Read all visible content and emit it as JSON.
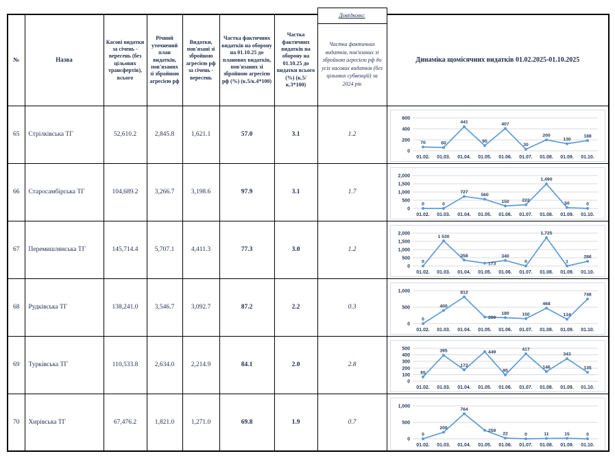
{
  "table": {
    "headers": {
      "num": "№",
      "name": "Назва",
      "cash": "Касові видатки за січень - вересень (без цільових трансфертів), всього",
      "annual_plan": "Річний уточнений план видатків, пов'язаних зі збройною агресією рф",
      "war_expenses": "Видатки, пов'язані зі збройною агресією рф за січень - вересень",
      "share_of_plan": "Частка фактичних видатків на оборону на 01.10.25 до планових видатків, пов'язаних зі збройною агресією рф (%) (к.5/к.4*100)",
      "share_of_total": "Частка фактичних видатків на оборону на 01.10.25 до видатки всього (%) (к.5/к.3*100)",
      "reference_label": "Довідково:",
      "reference_note": "Частка фактичних видатків, пов'язаних зі збройною агресією рф до усіх касових видатків (без цільових субвенцій) за 2024 рік",
      "dynamics": "Динаміка щомісячних видатків 01.02.2025-01.10.2025"
    },
    "rows": [
      {
        "num": "65",
        "name": "Стрілківська ТГ",
        "cash": "52,610.2",
        "annual_plan": "2,845.8",
        "war_expenses": "1,621.1",
        "share_of_plan": "57.0",
        "share_of_total": "3.1",
        "reference_2024": "1.2"
      },
      {
        "num": "66",
        "name": "Старосамбірська ТГ",
        "cash": "104,689.2",
        "annual_plan": "3,266.7",
        "war_expenses": "3,198.6",
        "share_of_plan": "97.9",
        "share_of_total": "3.1",
        "reference_2024": "1.7"
      },
      {
        "num": "67",
        "name": "Перемишлянська ТГ",
        "cash": "145,714.4",
        "annual_plan": "5,707.1",
        "war_expenses": "4,411.3",
        "share_of_plan": "77.3",
        "share_of_total": "3.0",
        "reference_2024": "1.2"
      },
      {
        "num": "68",
        "name": "Рудківська ТГ",
        "cash": "138,241.0",
        "annual_plan": "3,546.7",
        "war_expenses": "3,092.7",
        "share_of_plan": "87.2",
        "share_of_total": "2.2",
        "reference_2024": "0.3"
      },
      {
        "num": "69",
        "name": "Турківська ТГ",
        "cash": "110,533.8",
        "annual_plan": "2,634.0",
        "war_expenses": "2,214.9",
        "share_of_plan": "84.1",
        "share_of_total": "2.0",
        "reference_2024": "2.8"
      },
      {
        "num": "70",
        "name": "Хирівська ТГ",
        "cash": "67,476.2",
        "annual_plan": "1,821.0",
        "war_expenses": "1,271.0",
        "share_of_plan": "69.8",
        "share_of_total": "1.9",
        "reference_2024": "0.7"
      }
    ]
  },
  "chart_style": {
    "line_color": "#5b9bd5",
    "grid_color": "#d9d9d9",
    "label_color": "#253a5e"
  },
  "chart_data": [
    {
      "type": "line",
      "row_num": "65",
      "title": "Динаміка щомісячних видатків 01.02.2025-01.10.2025",
      "categories": [
        "01.02.",
        "01.03.",
        "01.04.",
        "01.05.",
        "01.06.",
        "01.07.",
        "01.08.",
        "01.09.",
        "01.10."
      ],
      "values": [
        70,
        60,
        441,
        95,
        407,
        30,
        200,
        130,
        188
      ],
      "point_labels": [
        "70",
        "60",
        "441",
        "95",
        "407",
        "30",
        "200",
        "130",
        "188"
      ],
      "ylim": [
        0,
        600
      ],
      "ytick_values": [
        0,
        200,
        400,
        600
      ],
      "ytick_labels": [
        "0",
        "200",
        "400",
        "600"
      ],
      "grid": true,
      "legend": false,
      "label_placements": {}
    },
    {
      "type": "line",
      "row_num": "66",
      "title": "Динаміка щомісячних видатків 01.02.2025-01.10.2025",
      "categories": [
        "01.02.",
        "01.03.",
        "01.04.",
        "01.05.",
        "01.06.",
        "01.07.",
        "01.08.",
        "01.09.",
        "01.10."
      ],
      "values": [
        0,
        0,
        727,
        560,
        150,
        222,
        1490,
        50,
        0
      ],
      "point_labels": [
        "0",
        "0",
        "727",
        "560",
        "150",
        "222",
        "1,490",
        "50",
        "0"
      ],
      "ylim": [
        0,
        2000
      ],
      "ytick_values": [
        0,
        500,
        1000,
        1500,
        2000
      ],
      "ytick_labels": [
        "0",
        "500",
        "1,000",
        "1,500",
        "2,000"
      ],
      "grid": true,
      "legend": false,
      "label_placements": {}
    },
    {
      "type": "line",
      "row_num": "67",
      "title": "Динаміка щомісячних видатків 01.02.2025-01.10.2025",
      "categories": [
        "01.02.",
        "01.03.",
        "01.04.",
        "01.05.",
        "01.06.",
        "01.07.",
        "01.08.",
        "01.09.",
        "01.10."
      ],
      "values": [
        0,
        1530,
        358,
        173,
        340,
        0,
        1725,
        1,
        286
      ],
      "point_labels": [
        "0",
        "1 530",
        "358",
        "173",
        "340",
        "0",
        "1,725",
        "1",
        "286"
      ],
      "ylim": [
        0,
        2000
      ],
      "ytick_values": [
        0,
        500,
        1000,
        1500,
        2000
      ],
      "ytick_labels": [
        "0",
        "500",
        "1,000",
        "1,500",
        "2,000"
      ],
      "grid": true,
      "legend": false,
      "label_placements": {
        "3": "right"
      }
    },
    {
      "type": "line",
      "row_num": "68",
      "title": "Динаміка щомісячних видатків 01.02.2025-01.10.2025",
      "categories": [
        "01.02.",
        "01.03.",
        "01.04.",
        "01.05.",
        "01.06.",
        "01.07.",
        "01.08.",
        "01.09.",
        "01.10."
      ],
      "values": [
        0,
        400,
        812,
        200,
        180,
        150,
        468,
        134,
        748
      ],
      "point_labels": [
        "0",
        "400",
        "812",
        "200",
        "180",
        "150",
        "468",
        "134",
        "748"
      ],
      "ylim": [
        0,
        1000
      ],
      "ytick_values": [
        0,
        500,
        1000
      ],
      "ytick_labels": [
        "0",
        "500",
        "1,000"
      ],
      "grid": true,
      "legend": false,
      "label_placements": {
        "3": "right"
      }
    },
    {
      "type": "line",
      "row_num": "69",
      "title": "Динаміка щомісячних видатків 01.02.2025-01.10.2025",
      "categories": [
        "01.02.",
        "01.03.",
        "01.04.",
        "01.05.",
        "01.06.",
        "01.07.",
        "01.08.",
        "01.09.",
        "01.10."
      ],
      "values": [
        65,
        395,
        172,
        449,
        95,
        417,
        146,
        343,
        135
      ],
      "point_labels": [
        "65",
        "395",
        "172",
        "449",
        "95",
        "417",
        "146",
        "343",
        "135"
      ],
      "ylim": [
        0,
        500
      ],
      "ytick_values": [
        0,
        100,
        200,
        300,
        400,
        500
      ],
      "ytick_labels": [
        "0",
        "100",
        "200",
        "300",
        "400",
        "500"
      ],
      "grid": true,
      "legend": false,
      "label_placements": {
        "3": "right"
      }
    },
    {
      "type": "line",
      "row_num": "70",
      "title": "Динаміка щомісячних видатків 01.02.2025-01.10.2025",
      "categories": [
        "01.02.",
        "01.03.",
        "01.04.",
        "01.05.",
        "01.06.",
        "01.07.",
        "01.08.",
        "01.09.",
        "01.10."
      ],
      "values": [
        0,
        200,
        764,
        259,
        22,
        0,
        11,
        15,
        0
      ],
      "point_labels": [
        "0",
        "200",
        "764",
        "259",
        "22",
        "0",
        "11",
        "15",
        "0"
      ],
      "ylim": [
        0,
        1000
      ],
      "ytick_values": [
        0,
        500,
        1000
      ],
      "ytick_labels": [
        "0",
        "500",
        "1,000"
      ],
      "grid": true,
      "legend": false,
      "label_placements": {
        "3": "right"
      }
    }
  ]
}
